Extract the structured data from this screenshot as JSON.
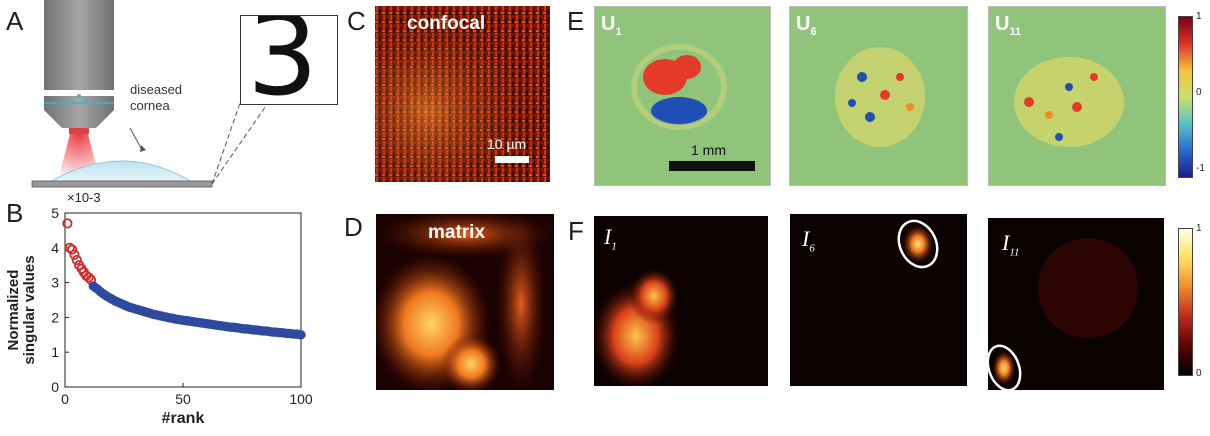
{
  "panel_labels": {
    "a": "A",
    "b": "B",
    "c": "C",
    "d": "D",
    "e": "E",
    "f": "F"
  },
  "panel_a": {
    "cornea_label_1": "diseased",
    "cornea_label_2": "cornea",
    "target_glyph": "3",
    "colors": {
      "objective": "#8a8c8e",
      "beam": "#e8333c",
      "cornea": "#cfe9f3",
      "slide": "#9a9a9a"
    }
  },
  "panel_c": {
    "title": "confocal",
    "scalebar_label": "10 µm"
  },
  "panel_d": {
    "title": "matrix"
  },
  "panel_e": {
    "tiles": [
      {
        "base": "U",
        "sub": "1"
      },
      {
        "base": "U",
        "sub": "6"
      },
      {
        "base": "U",
        "sub": "11"
      }
    ],
    "scalebar_label": "1 mm",
    "colorbar_ticks": [
      "1",
      "0",
      "-1"
    ]
  },
  "panel_f": {
    "tiles": [
      {
        "base": "I",
        "sub": "1"
      },
      {
        "base": "I",
        "sub": "6"
      },
      {
        "base": "I",
        "sub": "11"
      }
    ],
    "colorbar_ticks": [
      "1",
      "0"
    ]
  },
  "chart_data": {
    "type": "scatter",
    "title": "",
    "xlabel": "#rank",
    "ylabel_line1": "Normalized",
    "ylabel_line2": "singular values",
    "y_multiplier": "×10-3",
    "xlim": [
      0,
      100
    ],
    "ylim": [
      0,
      5
    ],
    "xticks": [
      "0",
      "50",
      "100"
    ],
    "yticks": [
      "0",
      "1",
      "2",
      "3",
      "4",
      "5"
    ],
    "highlight_count": 11,
    "colors": {
      "highlight": "#d62828",
      "rest": "#2e4a9e"
    },
    "x": [
      1,
      2,
      3,
      4,
      5,
      6,
      7,
      8,
      9,
      10,
      11,
      12,
      13,
      14,
      15,
      16,
      17,
      18,
      19,
      20,
      21,
      22,
      23,
      24,
      25,
      26,
      27,
      28,
      29,
      30,
      31,
      32,
      33,
      34,
      35,
      36,
      37,
      38,
      39,
      40,
      41,
      42,
      43,
      44,
      45,
      46,
      47,
      48,
      49,
      50,
      51,
      52,
      53,
      54,
      55,
      56,
      57,
      58,
      59,
      60,
      61,
      62,
      63,
      64,
      65,
      66,
      67,
      68,
      69,
      70,
      71,
      72,
      73,
      74,
      75,
      76,
      77,
      78,
      79,
      80,
      81,
      82,
      83,
      84,
      85,
      86,
      87,
      88,
      89,
      90,
      91,
      92,
      93,
      94,
      95,
      96,
      97,
      98,
      99,
      100
    ],
    "values": [
      4.7,
      4.0,
      3.95,
      3.8,
      3.65,
      3.5,
      3.4,
      3.3,
      3.2,
      3.15,
      3.08,
      2.9,
      2.85,
      2.8,
      2.74,
      2.69,
      2.64,
      2.6,
      2.56,
      2.52,
      2.48,
      2.45,
      2.42,
      2.39,
      2.36,
      2.33,
      2.3,
      2.28,
      2.26,
      2.24,
      2.22,
      2.2,
      2.18,
      2.16,
      2.14,
      2.12,
      2.1,
      2.08,
      2.07,
      2.05,
      2.04,
      2.02,
      2.01,
      1.99,
      1.98,
      1.97,
      1.95,
      1.94,
      1.93,
      1.92,
      1.91,
      1.9,
      1.89,
      1.88,
      1.87,
      1.86,
      1.85,
      1.84,
      1.83,
      1.82,
      1.81,
      1.8,
      1.79,
      1.78,
      1.77,
      1.76,
      1.75,
      1.74,
      1.73,
      1.72,
      1.72,
      1.71,
      1.7,
      1.69,
      1.68,
      1.67,
      1.67,
      1.66,
      1.65,
      1.64,
      1.64,
      1.63,
      1.62,
      1.61,
      1.61,
      1.6,
      1.59,
      1.58,
      1.58,
      1.57,
      1.56,
      1.56,
      1.55,
      1.54,
      1.54,
      1.53,
      1.52,
      1.52,
      1.51,
      1.5
    ]
  }
}
